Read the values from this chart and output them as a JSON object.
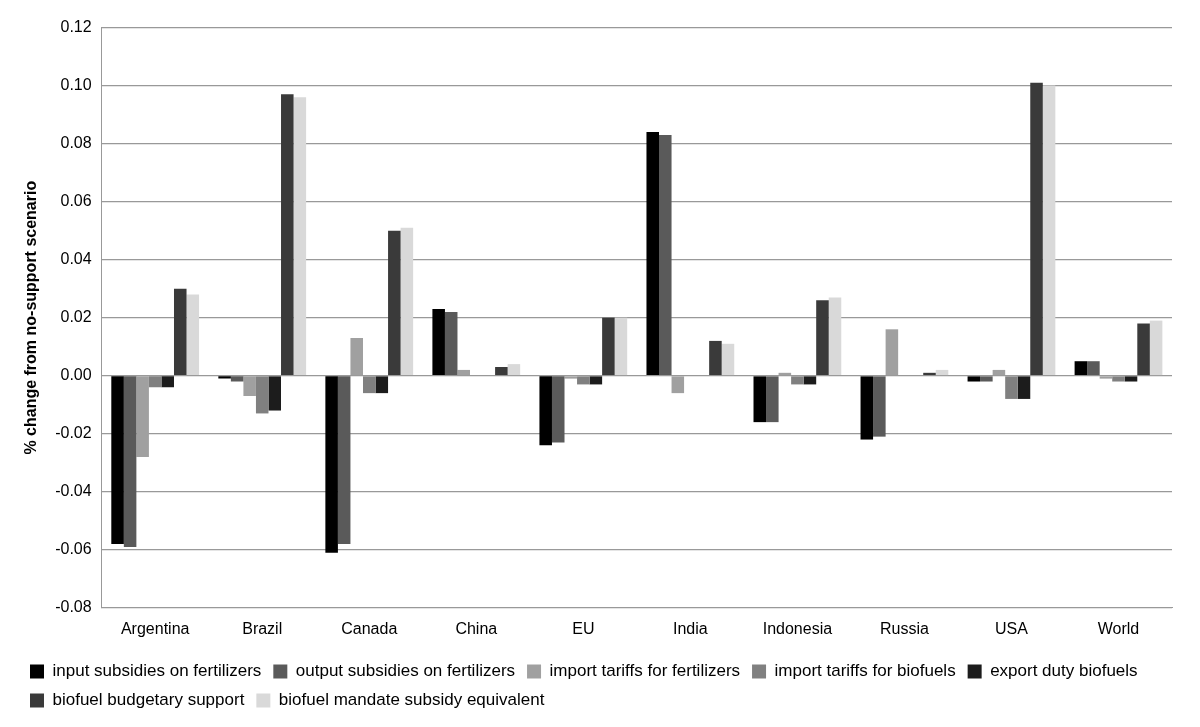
{
  "chart_data": {
    "type": "bar",
    "ylabel": "% change from no-support scenario",
    "categories": [
      "Argentina",
      "Brazil",
      "Canada",
      "China",
      "EU",
      "India",
      "Indonesia",
      "Russia",
      "USA",
      "World"
    ],
    "series": [
      {
        "name": "input subsidies on fertilizers",
        "color": "#000000",
        "values": [
          -0.058,
          -0.001,
          -0.061,
          0.023,
          -0.024,
          0.084,
          -0.016,
          -0.022,
          -0.002,
          0.005
        ]
      },
      {
        "name": "output subsidies on fertilizers",
        "color": "#5a5a5a",
        "values": [
          -0.059,
          -0.002,
          -0.058,
          0.022,
          -0.023,
          0.083,
          -0.016,
          -0.021,
          -0.002,
          0.005
        ]
      },
      {
        "name": "import tariffs for fertilizers",
        "color": "#a0a0a0",
        "values": [
          -0.028,
          -0.007,
          0.013,
          0.002,
          -0.001,
          -0.006,
          0.001,
          0.016,
          0.002,
          -0.001
        ]
      },
      {
        "name": "import tariffs for biofuels",
        "color": "#808080",
        "values": [
          -0.004,
          -0.013,
          -0.006,
          0,
          -0.003,
          0,
          -0.003,
          0,
          -0.008,
          -0.002
        ]
      },
      {
        "name": "export duty biofuels",
        "color": "#1c1c1c",
        "values": [
          -0.004,
          -0.012,
          -0.006,
          0,
          -0.003,
          0,
          -0.003,
          0,
          -0.008,
          -0.002
        ]
      },
      {
        "name": "biofuel budgetary support",
        "color": "#3a3a3a",
        "values": [
          0.03,
          0.097,
          0.05,
          0.003,
          0.02,
          0.012,
          0.026,
          0.001,
          0.101,
          0.018
        ]
      },
      {
        "name": "biofuel mandate subsidy equivalent",
        "color": "#d9d9d9",
        "values": [
          0.028,
          0.096,
          0.051,
          0.004,
          0.02,
          0.011,
          0.027,
          0.002,
          0.1,
          0.019
        ]
      }
    ],
    "ylim": [
      -0.08,
      0.12
    ],
    "yticks": [
      {
        "value": -0.08,
        "label": "-0.08"
      },
      {
        "value": -0.06,
        "label": "-0.06"
      },
      {
        "value": -0.04,
        "label": "-0.04"
      },
      {
        "value": -0.02,
        "label": "-0.02"
      },
      {
        "value": 0,
        "label": "0.00"
      },
      {
        "value": 0.02,
        "label": "0.02"
      },
      {
        "value": 0.04,
        "label": "0.04"
      },
      {
        "value": 0.06,
        "label": "0.06"
      },
      {
        "value": 0.08,
        "label": "0.08"
      },
      {
        "value": 0.1,
        "label": "0.10"
      },
      {
        "value": 0.12,
        "label": "0.12"
      }
    ],
    "grid": "y",
    "legend": "bottom"
  }
}
